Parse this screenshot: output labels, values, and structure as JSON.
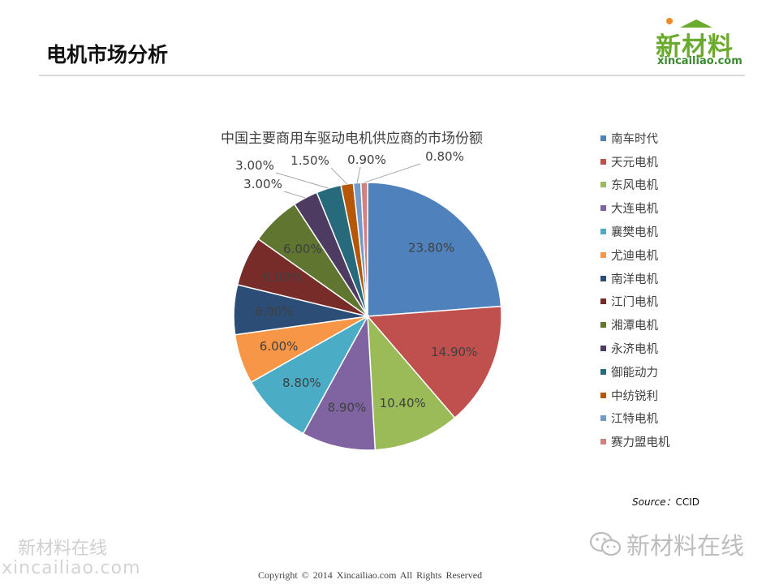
{
  "header": {
    "title": "电机市场分析",
    "logo_text": "新材料",
    "logo_url": "xincailiao.com"
  },
  "chart_data": {
    "type": "pie",
    "title": "中国主要商用车驱动电机供应商的市场份额",
    "legend_position": "right",
    "slices": [
      {
        "name": "南车时代",
        "value": 23.8,
        "label": "23.80%",
        "color": "#4f81bd"
      },
      {
        "name": "天元电机",
        "value": 14.9,
        "label": "14.90%",
        "color": "#c0504d"
      },
      {
        "name": "东风电机",
        "value": 10.4,
        "label": "10.40%",
        "color": "#9bbb59"
      },
      {
        "name": "大连电机",
        "value": 8.9,
        "label": "8.90%",
        "color": "#8064a2"
      },
      {
        "name": "襄樊电机",
        "value": 8.8,
        "label": "8.80%",
        "color": "#4bacc6"
      },
      {
        "name": "尤迪电机",
        "value": 6.0,
        "label": "6.00%",
        "color": "#f79646"
      },
      {
        "name": "南洋电机",
        "value": 6.0,
        "label": "6.00%",
        "color": "#2c4d75"
      },
      {
        "name": "江门电机",
        "value": 6.0,
        "label": "6.00%",
        "color": "#772c2a"
      },
      {
        "name": "湘潭电机",
        "value": 6.0,
        "label": "6.00%",
        "color": "#5f7530"
      },
      {
        "name": "永济电机",
        "value": 3.0,
        "label": "3.00%",
        "color": "#4d3b62"
      },
      {
        "name": "御能动力",
        "value": 3.0,
        "label": "3.00%",
        "color": "#276a7c"
      },
      {
        "name": "中纺锐利",
        "value": 1.5,
        "label": "1.50%",
        "color": "#b65708"
      },
      {
        "name": "江特电机",
        "value": 0.9,
        "label": "0.90%",
        "color": "#729aca"
      },
      {
        "name": "赛力盟电机",
        "value": 0.8,
        "label": "0.80%",
        "color": "#d0827e"
      }
    ]
  },
  "footer": {
    "source_label": "Source：",
    "source_value": "CCID",
    "copyright": "Copyright © 2014   Xincailiao.com    All Rights Reserved",
    "watermark_left": "新材料在线",
    "watermark_left_url": "xincailiao.com",
    "watermark_right": "新材料在线"
  }
}
